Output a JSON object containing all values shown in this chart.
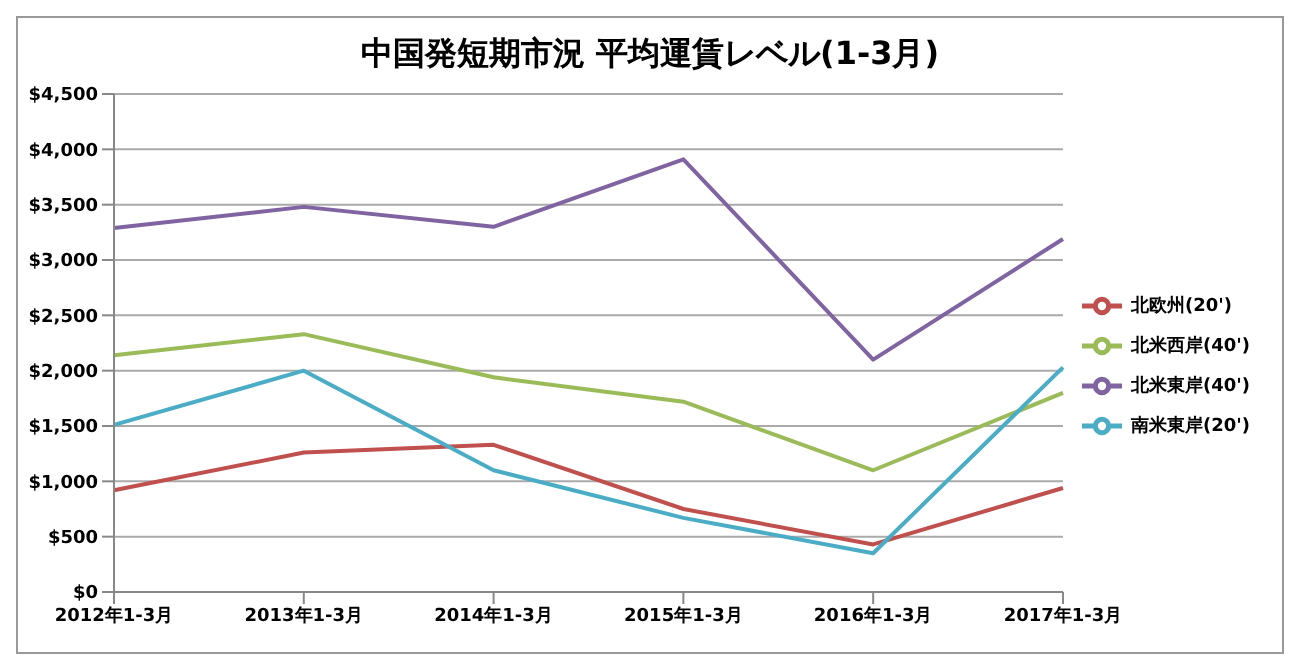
{
  "chart_data": {
    "type": "line",
    "title": "中国発短期市況 平均運賃レベル(1-3月)",
    "categories": [
      "2012年1-3月",
      "2013年1-3月",
      "2014年1-3月",
      "2015年1-3月",
      "2016年1-3月",
      "2017年1-3月"
    ],
    "series": [
      {
        "name": "北欧州(20')",
        "color": "#c0504d",
        "values": [
          920,
          1260,
          1330,
          750,
          430,
          940
        ]
      },
      {
        "name": "北米西岸(40')",
        "color": "#9bbb59",
        "values": [
          2140,
          2330,
          1940,
          1720,
          1100,
          1800
        ]
      },
      {
        "name": "北米東岸(40')",
        "color": "#8064a2",
        "values": [
          3290,
          3480,
          3300,
          3910,
          2100,
          3190
        ]
      },
      {
        "name": "南米東岸(20')",
        "color": "#4bacc6",
        "values": [
          1510,
          2000,
          1100,
          670,
          350,
          2030
        ]
      }
    ],
    "ylim": [
      0,
      4500
    ],
    "yticks": [
      {
        "value": 0,
        "label": "$0"
      },
      {
        "value": 500,
        "label": "$500"
      },
      {
        "value": 1000,
        "label": "$1,000"
      },
      {
        "value": 1500,
        "label": "$1,500"
      },
      {
        "value": 2000,
        "label": "$2,000"
      },
      {
        "value": 2500,
        "label": "$2,500"
      },
      {
        "value": 3000,
        "label": "$3,000"
      },
      {
        "value": 3500,
        "label": "$3,500"
      },
      {
        "value": 4000,
        "label": "$4,000"
      },
      {
        "value": 4500,
        "label": "$4,500"
      }
    ],
    "grid": "y",
    "legend": "right",
    "marker": "none",
    "line_style": "solid"
  }
}
